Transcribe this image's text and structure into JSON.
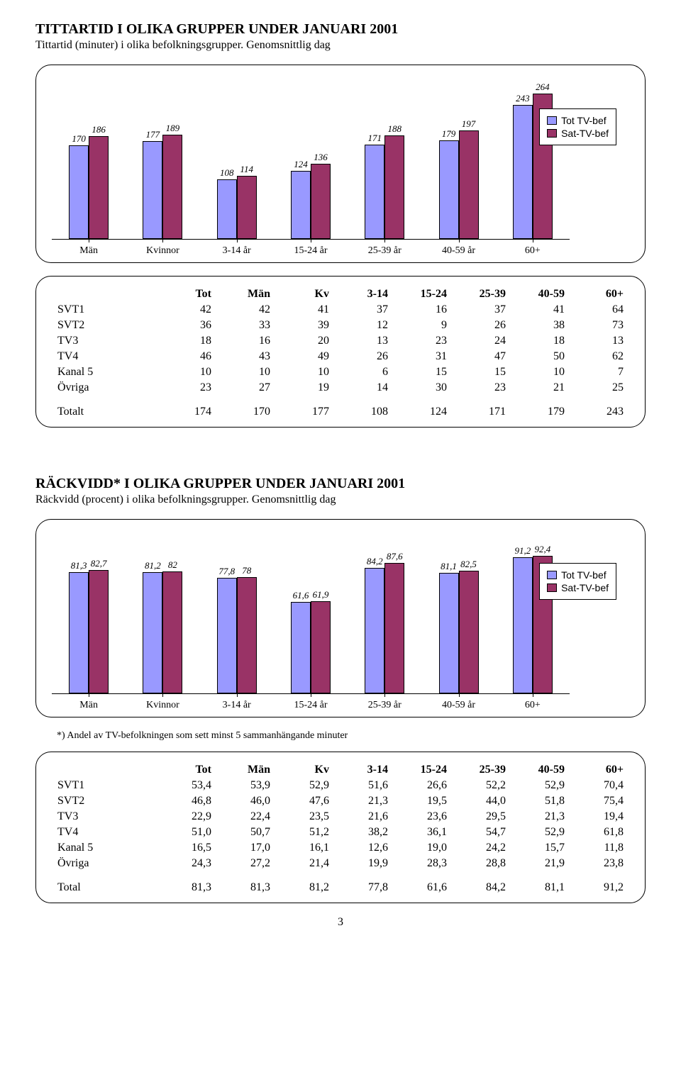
{
  "section1": {
    "title": "TITTARTID I OLIKA GRUPPER UNDER JANUARI 2001",
    "subtitle": "Tittartid (minuter) i olika befolkningsgrupper. Genomsnittlig dag",
    "chart": {
      "type": "grouped-bar",
      "ymax": 270,
      "categories": [
        "Män",
        "Kvinnor",
        "3-14 år",
        "15-24 år",
        "25-39 år",
        "40-59 år",
        "60+"
      ],
      "series": [
        {
          "name": "Tot TV-bef",
          "color": "#9999ff",
          "values": [
            170,
            177,
            108,
            124,
            171,
            179,
            243
          ]
        },
        {
          "name": "Sat-TV-bef",
          "color": "#993366",
          "values": [
            186,
            189,
            114,
            136,
            188,
            197,
            264
          ]
        }
      ]
    },
    "table": {
      "headers": [
        "Tot",
        "Män",
        "Kv",
        "3-14",
        "15-24",
        "25-39",
        "40-59",
        "60+"
      ],
      "rows": [
        {
          "label": "SVT1",
          "v": [
            "42",
            "42",
            "41",
            "37",
            "16",
            "37",
            "41",
            "64"
          ]
        },
        {
          "label": "SVT2",
          "v": [
            "36",
            "33",
            "39",
            "12",
            "9",
            "26",
            "38",
            "73"
          ]
        },
        {
          "label": "TV3",
          "v": [
            "18",
            "16",
            "20",
            "13",
            "23",
            "24",
            "18",
            "13"
          ]
        },
        {
          "label": "TV4",
          "v": [
            "46",
            "43",
            "49",
            "26",
            "31",
            "47",
            "50",
            "62"
          ]
        },
        {
          "label": "Kanal 5",
          "v": [
            "10",
            "10",
            "10",
            "6",
            "15",
            "15",
            "10",
            "7"
          ]
        },
        {
          "label": "Övriga",
          "v": [
            "23",
            "27",
            "19",
            "14",
            "30",
            "23",
            "21",
            "25"
          ]
        }
      ],
      "total": {
        "label": "Totalt",
        "v": [
          "174",
          "170",
          "177",
          "108",
          "124",
          "171",
          "179",
          "243"
        ]
      }
    }
  },
  "section2": {
    "title": "RÄCKVIDD* I OLIKA GRUPPER UNDER JANUARI 2001",
    "subtitle": "Räckvidd (procent) i olika befolkningsgrupper. Genomsnittlig dag",
    "chart": {
      "type": "grouped-bar",
      "ymax": 100,
      "categories": [
        "Män",
        "Kvinnor",
        "3-14 år",
        "15-24 år",
        "25-39 år",
        "40-59 år",
        "60+"
      ],
      "series": [
        {
          "name": "Tot TV-bef",
          "color": "#9999ff",
          "labels": [
            "81,3",
            "81,2",
            "77,8",
            "61,6",
            "84,2",
            "81,1",
            "91,2"
          ],
          "values": [
            81.3,
            81.2,
            77.8,
            61.6,
            84.2,
            81.1,
            91.2
          ]
        },
        {
          "name": "Sat-TV-bef",
          "color": "#993366",
          "labels": [
            "82,7",
            "82",
            "78",
            "61,9",
            "87,6",
            "82,5",
            "92,4"
          ],
          "values": [
            82.7,
            82.0,
            78.0,
            61.9,
            87.6,
            82.5,
            92.4
          ]
        }
      ]
    },
    "footnote": "*) Andel av TV-befolkningen som sett minst 5 sammanhängande minuter",
    "table": {
      "headers": [
        "Tot",
        "Män",
        "Kv",
        "3-14",
        "15-24",
        "25-39",
        "40-59",
        "60+"
      ],
      "rows": [
        {
          "label": "SVT1",
          "v": [
            "53,4",
            "53,9",
            "52,9",
            "51,6",
            "26,6",
            "52,2",
            "52,9",
            "70,4"
          ]
        },
        {
          "label": "SVT2",
          "v": [
            "46,8",
            "46,0",
            "47,6",
            "21,3",
            "19,5",
            "44,0",
            "51,8",
            "75,4"
          ]
        },
        {
          "label": "TV3",
          "v": [
            "22,9",
            "22,4",
            "23,5",
            "21,6",
            "23,6",
            "29,5",
            "21,3",
            "19,4"
          ]
        },
        {
          "label": "TV4",
          "v": [
            "51,0",
            "50,7",
            "51,2",
            "38,2",
            "36,1",
            "54,7",
            "52,9",
            "61,8"
          ]
        },
        {
          "label": "Kanal 5",
          "v": [
            "16,5",
            "17,0",
            "16,1",
            "12,6",
            "19,0",
            "24,2",
            "15,7",
            "11,8"
          ]
        },
        {
          "label": "Övriga",
          "v": [
            "24,3",
            "27,2",
            "21,4",
            "19,9",
            "28,3",
            "28,8",
            "21,9",
            "23,8"
          ]
        }
      ],
      "total": {
        "label": "Total",
        "v": [
          "81,3",
          "81,3",
          "81,2",
          "77,8",
          "61,6",
          "84,2",
          "81,1",
          "91,2"
        ]
      }
    }
  },
  "page_number": "3"
}
